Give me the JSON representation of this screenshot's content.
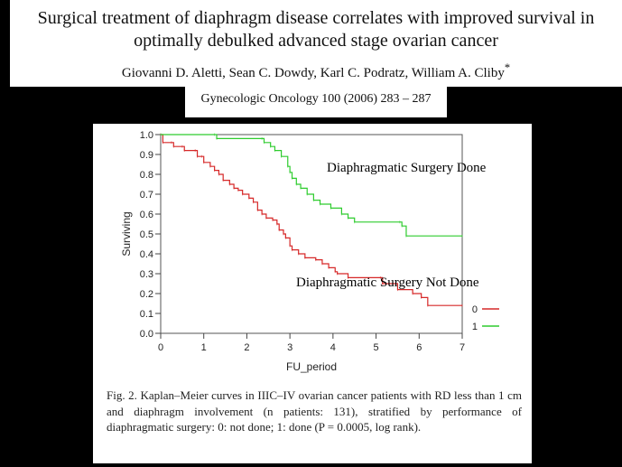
{
  "header": {
    "title_line1": "Surgical treatment of diaphragm disease correlates with improved survival in",
    "title_line2": "optimally debulked advanced stage ovarian cancer",
    "authors": "Giovanni D. Aletti, Sean C. Dowdy, Karl C. Podratz, William A. Cliby",
    "authors_mark": "*",
    "journal": "Gynecologic Oncology 100 (2006) 283 – 287"
  },
  "chart_data": {
    "type": "line",
    "xlabel": "FU_period",
    "ylabel": "Surviving",
    "xlim": [
      0,
      7
    ],
    "ylim": [
      0,
      1
    ],
    "x_ticks": [
      "0",
      "1",
      "2",
      "3",
      "4",
      "5",
      "6",
      "7"
    ],
    "y_ticks": [
      "0.0",
      "0.1",
      "0.2",
      "0.3",
      "0.4",
      "0.5",
      "0.6",
      "0.7",
      "0.8",
      "0.9",
      "1.0"
    ],
    "legend_position": "bottom-right",
    "series": [
      {
        "name": "0",
        "color": "#d62828",
        "points": [
          [
            0,
            1.0
          ],
          [
            0.05,
            0.96
          ],
          [
            0.25,
            0.96
          ],
          [
            0.3,
            0.94
          ],
          [
            0.5,
            0.94
          ],
          [
            0.55,
            0.92
          ],
          [
            0.8,
            0.92
          ],
          [
            0.85,
            0.89
          ],
          [
            0.95,
            0.89
          ],
          [
            1.0,
            0.86
          ],
          [
            1.15,
            0.84
          ],
          [
            1.25,
            0.82
          ],
          [
            1.35,
            0.8
          ],
          [
            1.45,
            0.77
          ],
          [
            1.6,
            0.75
          ],
          [
            1.7,
            0.73
          ],
          [
            1.8,
            0.72
          ],
          [
            1.9,
            0.7
          ],
          [
            2.05,
            0.68
          ],
          [
            2.15,
            0.66
          ],
          [
            2.25,
            0.62
          ],
          [
            2.35,
            0.6
          ],
          [
            2.45,
            0.58
          ],
          [
            2.6,
            0.57
          ],
          [
            2.7,
            0.55
          ],
          [
            2.75,
            0.52
          ],
          [
            2.85,
            0.5
          ],
          [
            2.9,
            0.48
          ],
          [
            3.0,
            0.44
          ],
          [
            3.05,
            0.42
          ],
          [
            3.2,
            0.4
          ],
          [
            3.35,
            0.38
          ],
          [
            3.6,
            0.37
          ],
          [
            3.75,
            0.35
          ],
          [
            3.9,
            0.33
          ],
          [
            4.05,
            0.31
          ],
          [
            4.1,
            0.3
          ],
          [
            4.35,
            0.28
          ],
          [
            5.1,
            0.28
          ],
          [
            5.15,
            0.25
          ],
          [
            5.5,
            0.22
          ],
          [
            5.85,
            0.2
          ],
          [
            6.05,
            0.18
          ],
          [
            6.2,
            0.14
          ],
          [
            7.0,
            0.14
          ]
        ]
      },
      {
        "name": "1",
        "color": "#2ecc2e",
        "points": [
          [
            0,
            1.0
          ],
          [
            1.25,
            1.0
          ],
          [
            1.3,
            0.98
          ],
          [
            2.35,
            0.98
          ],
          [
            2.4,
            0.96
          ],
          [
            2.55,
            0.94
          ],
          [
            2.65,
            0.92
          ],
          [
            2.8,
            0.89
          ],
          [
            2.95,
            0.84
          ],
          [
            3.0,
            0.81
          ],
          [
            3.05,
            0.78
          ],
          [
            3.15,
            0.75
          ],
          [
            3.25,
            0.73
          ],
          [
            3.4,
            0.7
          ],
          [
            3.55,
            0.67
          ],
          [
            3.7,
            0.65
          ],
          [
            3.95,
            0.63
          ],
          [
            4.2,
            0.6
          ],
          [
            4.35,
            0.58
          ],
          [
            4.5,
            0.56
          ],
          [
            5.55,
            0.56
          ],
          [
            5.6,
            0.54
          ],
          [
            5.7,
            0.49
          ],
          [
            7.0,
            0.49
          ]
        ]
      }
    ],
    "annotations": [
      "Diaphragmatic Surgery Done",
      "Diaphragmatic Surgery Not Done"
    ]
  },
  "caption": "Fig. 2. Kaplan–Meier curves in IIIC–IV ovarian cancer patients with RD less than 1 cm and diaphragm involvement (n patients: 131), stratified by performance of diaphragmatic surgery: 0: not done; 1: done (P = 0.0005, log rank)."
}
